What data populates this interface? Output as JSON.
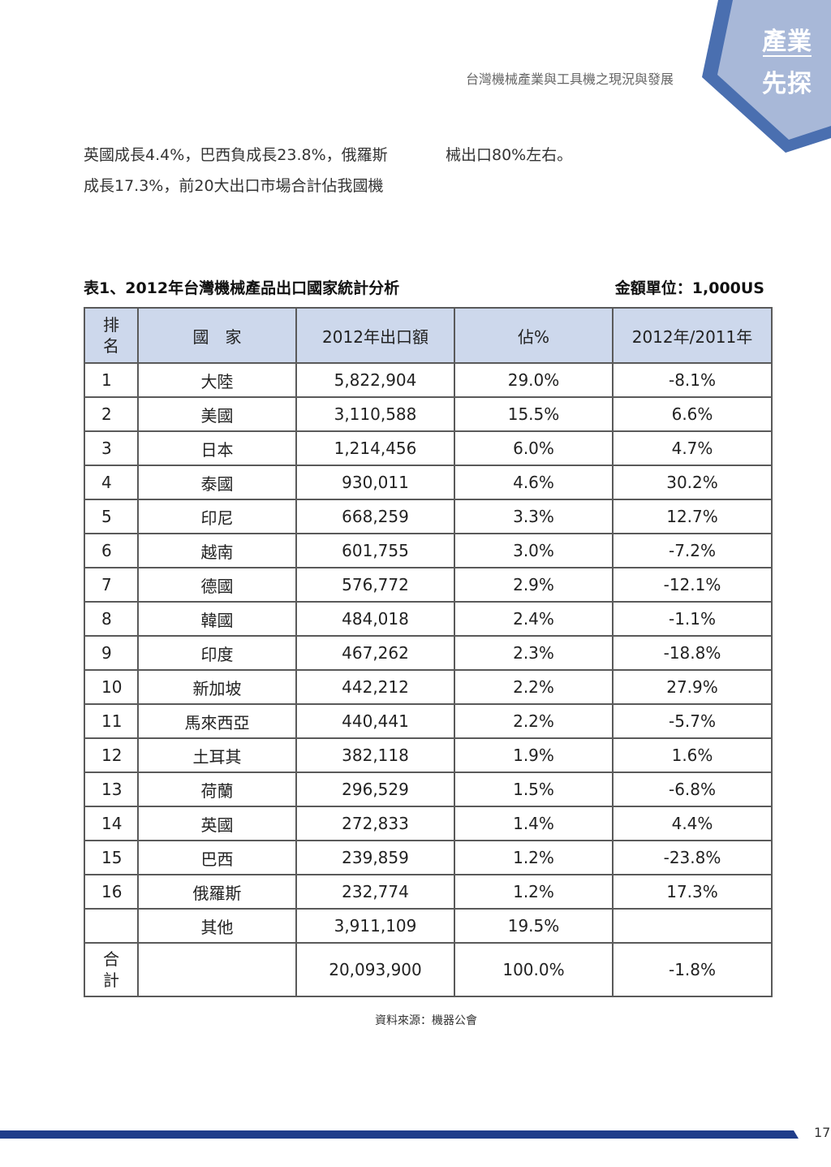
{
  "corner_tab": {
    "line1": "產業",
    "line2": "先探",
    "color": "#4a6fb0",
    "fill": "#a8b8d8"
  },
  "running_head": "台灣機械產業與工具機之現況與發展",
  "body": {
    "left_col": [
      "英國成長4.4%，巴西負成長23.8%，俄羅斯",
      "成長17.3%，前20大出口市場合計佔我國機"
    ],
    "right_col": [
      "械出口80%左右。"
    ]
  },
  "table": {
    "caption": "表1、2012年台灣機械產品出口國家統計分析",
    "unit": "金額單位：1,000US",
    "headers": {
      "rank_1": "排",
      "rank_2": "名",
      "country": "國　家",
      "export": "2012年出口額",
      "share": "佔%",
      "growth": "2012年/2011年"
    },
    "rows": [
      {
        "rank": "1",
        "country": "大陸",
        "export": "5,822,904",
        "share": "29.0%",
        "growth": "-8.1%"
      },
      {
        "rank": "2",
        "country": "美國",
        "export": "3,110,588",
        "share": "15.5%",
        "growth": "6.6%"
      },
      {
        "rank": "3",
        "country": "日本",
        "export": "1,214,456",
        "share": "6.0%",
        "growth": "4.7%"
      },
      {
        "rank": "4",
        "country": "泰國",
        "export": "930,011",
        "share": "4.6%",
        "growth": "30.2%"
      },
      {
        "rank": "5",
        "country": "印尼",
        "export": "668,259",
        "share": "3.3%",
        "growth": "12.7%"
      },
      {
        "rank": "6",
        "country": "越南",
        "export": "601,755",
        "share": "3.0%",
        "growth": "-7.2%"
      },
      {
        "rank": "7",
        "country": "德國",
        "export": "576,772",
        "share": "2.9%",
        "growth": "-12.1%"
      },
      {
        "rank": "8",
        "country": "韓國",
        "export": "484,018",
        "share": "2.4%",
        "growth": "-1.1%"
      },
      {
        "rank": "9",
        "country": "印度",
        "export": "467,262",
        "share": "2.3%",
        "growth": "-18.8%"
      },
      {
        "rank": "10",
        "country": "新加坡",
        "export": "442,212",
        "share": "2.2%",
        "growth": "27.9%"
      },
      {
        "rank": "11",
        "country": "馬來西亞",
        "export": "440,441",
        "share": "2.2%",
        "growth": "-5.7%"
      },
      {
        "rank": "12",
        "country": "土耳其",
        "export": "382,118",
        "share": "1.9%",
        "growth": "1.6%"
      },
      {
        "rank": "13",
        "country": "荷蘭",
        "export": "296,529",
        "share": "1.5%",
        "growth": "-6.8%"
      },
      {
        "rank": "14",
        "country": "英國",
        "export": "272,833",
        "share": "1.4%",
        "growth": "4.4%"
      },
      {
        "rank": "15",
        "country": "巴西",
        "export": "239,859",
        "share": "1.2%",
        "growth": "-23.8%"
      },
      {
        "rank": "16",
        "country": "俄羅斯",
        "export": "232,774",
        "share": "1.2%",
        "growth": "17.3%"
      },
      {
        "rank": "",
        "country": "其他",
        "export": "3,911,109",
        "share": "19.5%",
        "growth": ""
      }
    ],
    "total": {
      "label_1": "合",
      "label_2": "計",
      "export": "20,093,900",
      "share": "100.0%",
      "growth": "-1.8%"
    },
    "header_bg": "#cdd8ec"
  },
  "source": "資料來源：機器公會",
  "page_number": "17",
  "footer_color": "#1f3d8a"
}
